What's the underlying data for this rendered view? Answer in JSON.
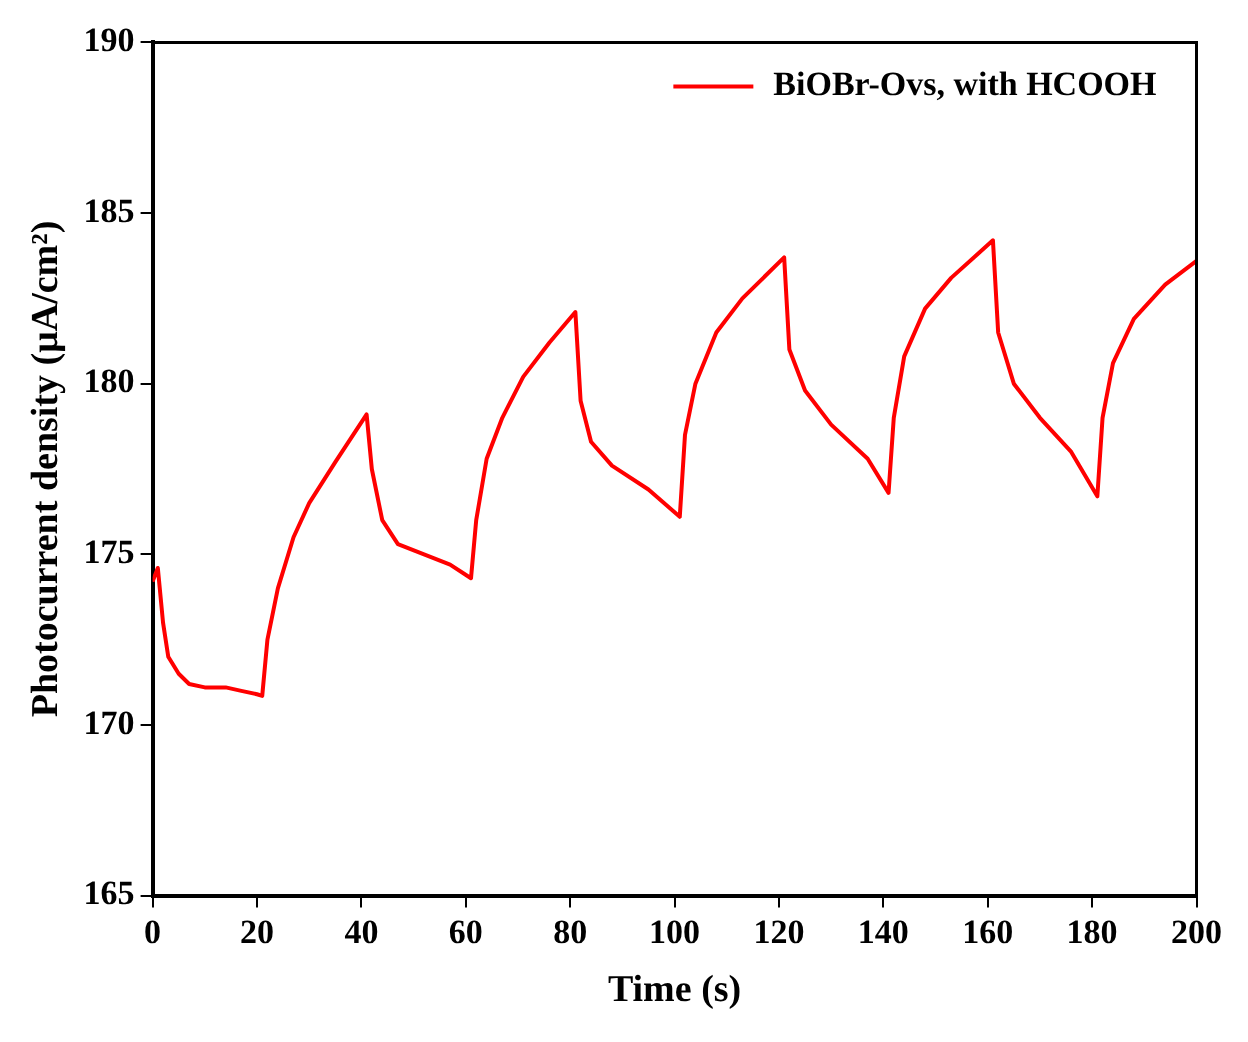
{
  "chart_data": {
    "type": "line",
    "xlabel": "Time (s)",
    "ylabel": "Photocurrent density (μA/cm²)",
    "xlim": [
      0,
      200
    ],
    "xticks": [
      0,
      20,
      40,
      60,
      80,
      100,
      120,
      140,
      160,
      180,
      200
    ],
    "ylim": [
      165,
      190
    ],
    "yticks": [
      165,
      170,
      175,
      180,
      185,
      190
    ],
    "grid": false,
    "legend": "top right",
    "marker": "none",
    "line_style": "solid",
    "series": [
      {
        "name": "BiOBr-Ovs, with HCOOH",
        "color": "#ff0000",
        "x": [
          0,
          1,
          2,
          3,
          5,
          7,
          10,
          14,
          17,
          20,
          21,
          22,
          24,
          27,
          30,
          35,
          41,
          42,
          44,
          47,
          52,
          57,
          61,
          62,
          64,
          67,
          71,
          76,
          81,
          82,
          84,
          88,
          95,
          101,
          102,
          104,
          108,
          113,
          121,
          122,
          125,
          130,
          137,
          141,
          142,
          144,
          148,
          153,
          161,
          162,
          165,
          170,
          176,
          181,
          182,
          184,
          188,
          194,
          200
        ],
        "values": [
          174.2,
          174.6,
          173,
          172,
          171.5,
          171.2,
          171.1,
          171.1,
          171,
          170.9,
          170.85,
          172.5,
          174,
          175.5,
          176.5,
          177.7,
          179.1,
          177.5,
          176,
          175.3,
          175,
          174.7,
          174.3,
          176,
          177.8,
          179,
          180.2,
          181.2,
          182.1,
          179.5,
          178.3,
          177.6,
          176.9,
          176.1,
          178.5,
          180,
          181.5,
          182.5,
          183.7,
          181,
          179.8,
          178.8,
          177.8,
          176.8,
          179,
          180.8,
          182.2,
          183.1,
          184.2,
          181.5,
          180,
          179,
          178,
          176.7,
          179,
          180.6,
          181.9,
          182.9,
          183.6
        ]
      }
    ]
  }
}
